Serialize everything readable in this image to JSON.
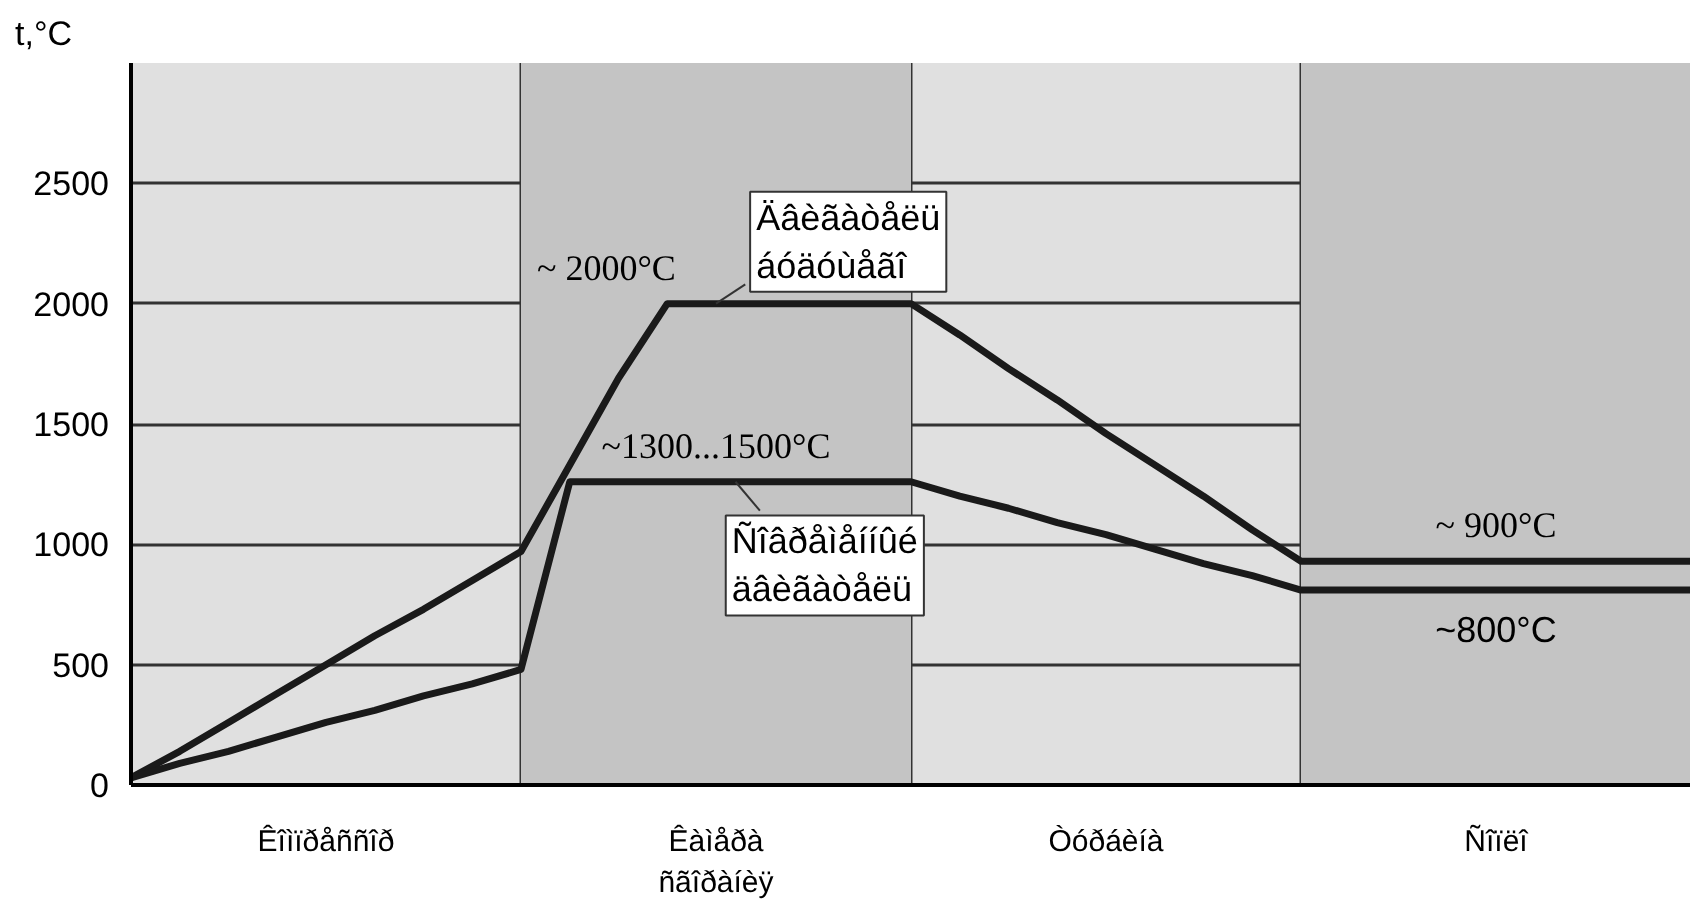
{
  "chart_data": {
    "type": "line",
    "ylabel": "t,°C",
    "categories": [
      null,
      null,
      null,
      null,
      "Êîìïðåññîð",
      null,
      null,
      null,
      null,
      null,
      null,
      null,
      "Êàìåðà\nñãîðàíèÿ",
      null,
      null,
      null,
      null,
      null,
      null,
      null,
      "Òóðáèíà",
      null,
      null,
      null,
      null,
      null,
      null,
      null,
      "Ñîïëî",
      null,
      null,
      null,
      null
    ],
    "ylim": [
      0,
      3000
    ],
    "yticks": [
      0,
      500,
      1000,
      1500,
      2000,
      2500
    ],
    "grid": true,
    "series": [
      {
        "color": "#1a1a1a",
        "values": [
          30,
          140,
          260,
          380,
          500,
          620,
          730,
          850,
          970,
          1330,
          1690,
          2000,
          2000,
          2000,
          2000,
          2000,
          2000,
          1870,
          1730,
          1600,
          1460,
          1330,
          1200,
          1060,
          930,
          930,
          930,
          930,
          930,
          930,
          930,
          930,
          930
        ]
      },
      {
        "color": "#1a1a1a",
        "values": [
          30,
          90,
          140,
          200,
          260,
          310,
          370,
          420,
          480,
          1260,
          1260,
          1260,
          1260,
          1260,
          1260,
          1260,
          1260,
          1200,
          1150,
          1090,
          1040,
          980,
          920,
          870,
          810,
          810,
          810,
          810,
          810,
          810,
          810,
          810,
          810
        ]
      }
    ],
    "annotations": [
      "~ 2000°C",
      "~1300...1500°C",
      "~ 900°C",
      "~800°C",
      "Äâèãàòåëü\náóäóùåãî",
      "Ñîâðåìåííûé\näâèãàòåëü"
    ]
  }
}
